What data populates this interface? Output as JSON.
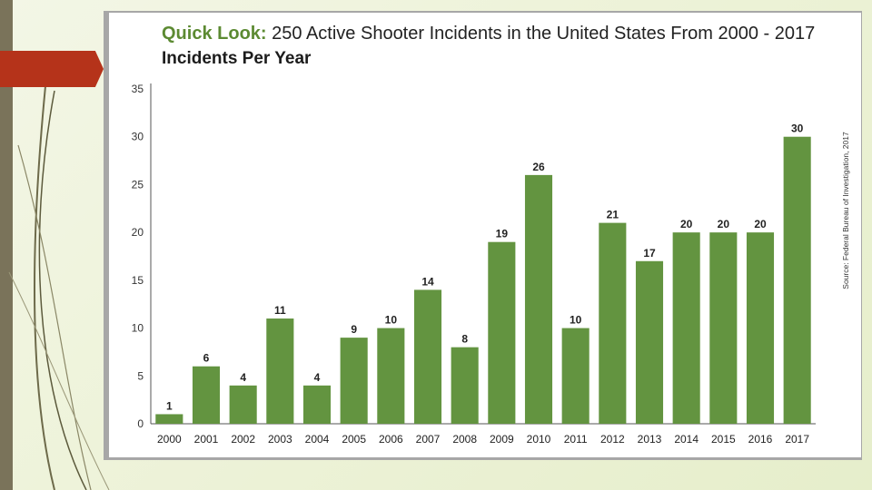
{
  "slide": {
    "accent_color": "#b5331a",
    "sidebar_color": "#7a735a"
  },
  "header": {
    "title_prefix": "Quick Look:",
    "title_rest": " 250 Active Shooter Incidents in the United States From 2000 - 2017",
    "subtitle": "Incidents Per Year"
  },
  "source_note": "Source: Federal Bureau of Investigation, 2017",
  "chart_data": {
    "type": "bar",
    "title": "Incidents Per Year",
    "xlabel": "",
    "ylabel": "",
    "categories": [
      "2000",
      "2001",
      "2002",
      "2003",
      "2004",
      "2005",
      "2006",
      "2007",
      "2008",
      "2009",
      "2010",
      "2011",
      "2012",
      "2013",
      "2014",
      "2015",
      "2016",
      "2017"
    ],
    "values": [
      1,
      6,
      4,
      11,
      4,
      9,
      10,
      14,
      8,
      19,
      26,
      10,
      21,
      17,
      20,
      20,
      20,
      30
    ],
    "ylim": [
      0,
      35
    ],
    "yticks": [
      0,
      5,
      10,
      15,
      20,
      25,
      30,
      35
    ],
    "bar_color": "#639440",
    "grid": false,
    "data_labels": true
  }
}
